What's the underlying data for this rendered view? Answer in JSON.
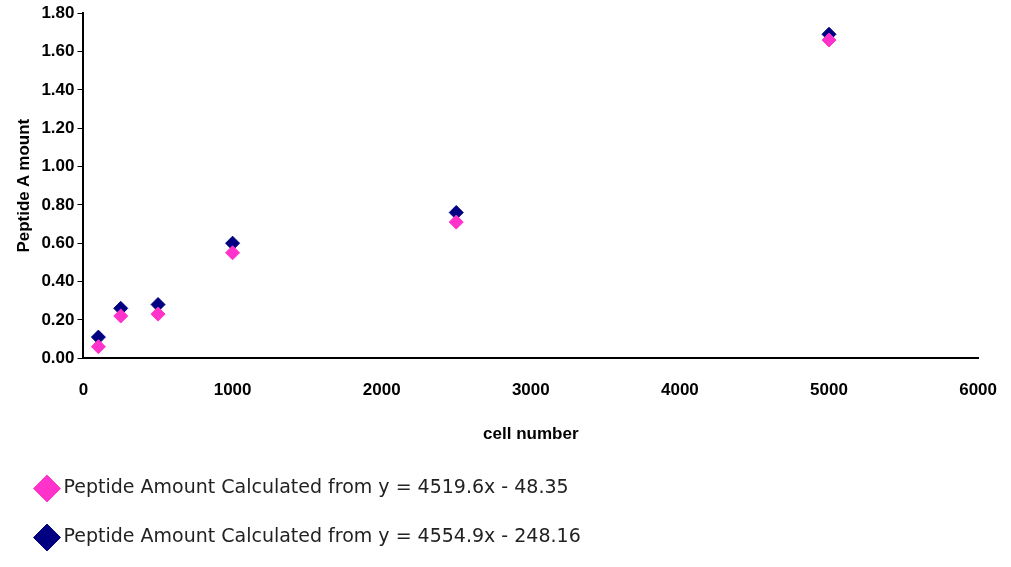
{
  "chart_data": {
    "type": "scatter",
    "xlabel": "cell number",
    "ylabel": "Peptide A mount",
    "x": [
      100,
      250,
      500,
      1000,
      2500,
      5000
    ],
    "series": [
      {
        "name": "Peptide Amount Calculated from y = 4519.6x - 48.35",
        "color": "#ff33cc",
        "values": [
          0.06,
          0.22,
          0.23,
          0.55,
          0.71,
          1.66
        ]
      },
      {
        "name": "Peptide Amount Calculated from y = 4554.9x - 248.16",
        "color": "#000080",
        "values": [
          0.11,
          0.26,
          0.28,
          0.6,
          0.76,
          1.69
        ]
      }
    ],
    "xlim": [
      0,
      6000
    ],
    "xticks": [
      0,
      1000,
      2000,
      3000,
      4000,
      5000,
      6000
    ],
    "ylim": [
      0,
      1.8
    ],
    "yticks": [
      {
        "value": 0,
        "label": "0.00"
      },
      {
        "value": 0.2,
        "label": "0.20"
      },
      {
        "value": 0.4,
        "label": "0.40"
      },
      {
        "value": 0.6,
        "label": "0.60"
      },
      {
        "value": 0.8,
        "label": "0.80"
      },
      {
        "value": 1,
        "label": "1.00"
      },
      {
        "value": 1.2,
        "label": "1.20"
      },
      {
        "value": 1.4,
        "label": "1.40"
      },
      {
        "value": 1.6,
        "label": "1.60"
      },
      {
        "value": 1.8,
        "label": "1.80"
      }
    ],
    "grid": false,
    "legend": "bottom",
    "marker": "diamond"
  }
}
